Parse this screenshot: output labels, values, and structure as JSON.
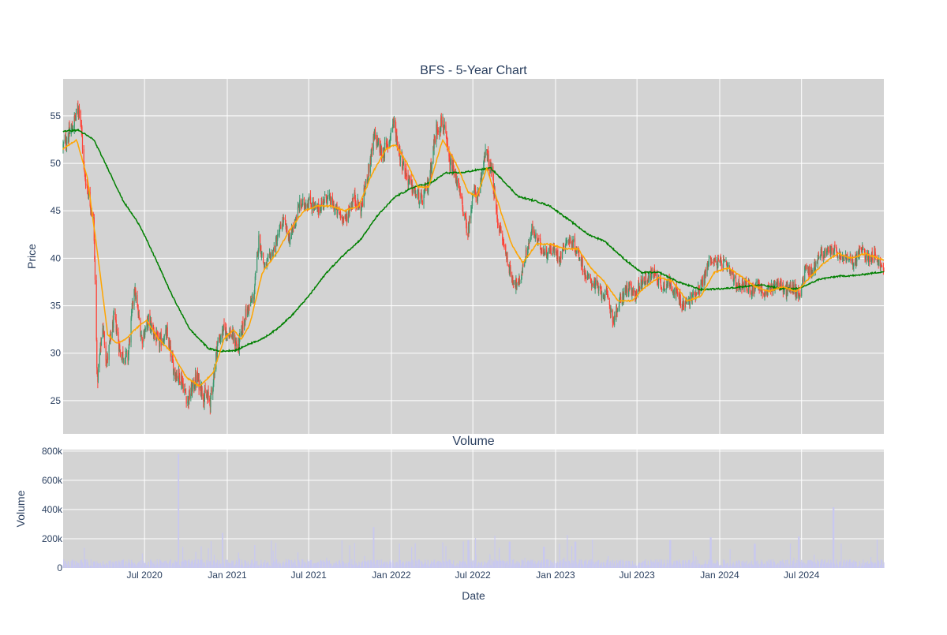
{
  "title": "BFS - 5-Year Chart",
  "colors": {
    "plot_bg": "#d3d3d3",
    "grid": "#ffffff",
    "up": "#3d9970",
    "down": "#ff4136",
    "ma_fast": "#ffa500",
    "ma_slow": "#008000",
    "volume": "#c8c8f0",
    "text": "#2a3f5f"
  },
  "chart_data": [
    {
      "type": "candlestick",
      "title": "BFS - 5-Year Chart",
      "ylabel": "Price",
      "ylim": [
        21.5,
        58.9
      ],
      "yticks": [
        25,
        30,
        35,
        40,
        45,
        50,
        55
      ],
      "ytick_labels": [
        "25",
        "30",
        "35",
        "40",
        "45",
        "50",
        "55"
      ],
      "x_range": [
        "2020-01-02",
        "2024-12-31"
      ],
      "xticks": [
        "2020-07-01",
        "2021-01-01",
        "2021-07-01",
        "2022-01-01",
        "2022-07-01",
        "2023-01-01",
        "2023-07-01",
        "2024-01-01",
        "2024-07-01"
      ],
      "grid": true,
      "price_anchors": [
        [
          "2020-01-02",
          51.8
        ],
        [
          "2020-01-20",
          53.5
        ],
        [
          "2020-02-08",
          56.2
        ],
        [
          "2020-02-18",
          49.0
        ],
        [
          "2020-03-10",
          44.0
        ],
        [
          "2020-03-18",
          27.0
        ],
        [
          "2020-03-30",
          33.0
        ],
        [
          "2020-04-08",
          29.0
        ],
        [
          "2020-04-25",
          34.0
        ],
        [
          "2020-05-08",
          30.0
        ],
        [
          "2020-05-25",
          29.5
        ],
        [
          "2020-06-08",
          37.0
        ],
        [
          "2020-06-25",
          31.5
        ],
        [
          "2020-07-10",
          33.5
        ],
        [
          "2020-08-01",
          31.0
        ],
        [
          "2020-08-20",
          32.0
        ],
        [
          "2020-09-05",
          28.0
        ],
        [
          "2020-09-20",
          27.5
        ],
        [
          "2020-10-05",
          25.0
        ],
        [
          "2020-10-25",
          27.5
        ],
        [
          "2020-11-10",
          25.5
        ],
        [
          "2020-11-25",
          25.0
        ],
        [
          "2020-12-10",
          31.0
        ],
        [
          "2020-12-25",
          32.5
        ],
        [
          "2021-01-10",
          32.0
        ],
        [
          "2021-01-25",
          30.5
        ],
        [
          "2021-02-10",
          34.0
        ],
        [
          "2021-03-01",
          36.0
        ],
        [
          "2021-03-12",
          42.0
        ],
        [
          "2021-03-25",
          39.0
        ],
        [
          "2021-04-15",
          41.0
        ],
        [
          "2021-05-05",
          44.0
        ],
        [
          "2021-05-20",
          42.0
        ],
        [
          "2021-06-10",
          45.5
        ],
        [
          "2021-07-01",
          46.0
        ],
        [
          "2021-07-20",
          45.0
        ],
        [
          "2021-08-10",
          46.5
        ],
        [
          "2021-09-01",
          45.0
        ],
        [
          "2021-09-20",
          44.0
        ],
        [
          "2021-10-10",
          46.5
        ],
        [
          "2021-10-25",
          45.0
        ],
        [
          "2021-11-10",
          49.0
        ],
        [
          "2021-11-25",
          53.0
        ],
        [
          "2021-12-10",
          51.0
        ],
        [
          "2021-12-25",
          52.0
        ],
        [
          "2022-01-05",
          54.5
        ],
        [
          "2022-01-20",
          51.0
        ],
        [
          "2022-02-05",
          48.5
        ],
        [
          "2022-02-20",
          47.0
        ],
        [
          "2022-03-10",
          46.0
        ],
        [
          "2022-03-25",
          48.0
        ],
        [
          "2022-04-10",
          53.5
        ],
        [
          "2022-04-25",
          54.5
        ],
        [
          "2022-05-10",
          50.0
        ],
        [
          "2022-05-25",
          48.5
        ],
        [
          "2022-06-10",
          45.0
        ],
        [
          "2022-06-20",
          42.5
        ],
        [
          "2022-07-01",
          47.0
        ],
        [
          "2022-07-15",
          46.5
        ],
        [
          "2022-07-28",
          51.5
        ],
        [
          "2022-08-12",
          49.0
        ],
        [
          "2022-08-25",
          44.0
        ],
        [
          "2022-09-10",
          41.0
        ],
        [
          "2022-09-25",
          38.0
        ],
        [
          "2022-10-10",
          37.0
        ],
        [
          "2022-10-25",
          40.0
        ],
        [
          "2022-11-10",
          43.0
        ],
        [
          "2022-11-25",
          41.5
        ],
        [
          "2022-12-10",
          40.5
        ],
        [
          "2022-12-25",
          41.0
        ],
        [
          "2023-01-10",
          40.0
        ],
        [
          "2023-01-25",
          42.0
        ],
        [
          "2023-02-10",
          41.5
        ],
        [
          "2023-02-25",
          40.0
        ],
        [
          "2023-03-10",
          38.0
        ],
        [
          "2023-03-25",
          37.5
        ],
        [
          "2023-04-10",
          36.5
        ],
        [
          "2023-04-25",
          36.0
        ],
        [
          "2023-05-10",
          33.5
        ],
        [
          "2023-05-25",
          35.5
        ],
        [
          "2023-06-10",
          37.0
        ],
        [
          "2023-06-25",
          36.0
        ],
        [
          "2023-07-10",
          37.5
        ],
        [
          "2023-07-25",
          38.0
        ],
        [
          "2023-08-10",
          38.5
        ],
        [
          "2023-08-25",
          37.0
        ],
        [
          "2023-09-10",
          37.5
        ],
        [
          "2023-09-25",
          36.5
        ],
        [
          "2023-10-10",
          35.0
        ],
        [
          "2023-10-25",
          35.5
        ],
        [
          "2023-11-10",
          36.5
        ],
        [
          "2023-11-25",
          37.5
        ],
        [
          "2023-12-10",
          40.0
        ],
        [
          "2023-12-25",
          39.5
        ],
        [
          "2024-01-10",
          39.5
        ],
        [
          "2024-01-25",
          38.5
        ],
        [
          "2024-02-10",
          37.0
        ],
        [
          "2024-02-25",
          37.5
        ],
        [
          "2024-03-10",
          36.5
        ],
        [
          "2024-03-25",
          37.5
        ],
        [
          "2024-04-10",
          36.0
        ],
        [
          "2024-04-25",
          37.0
        ],
        [
          "2024-05-10",
          37.5
        ],
        [
          "2024-05-25",
          36.5
        ],
        [
          "2024-06-10",
          37.0
        ],
        [
          "2024-06-25",
          36.0
        ],
        [
          "2024-07-10",
          39.0
        ],
        [
          "2024-07-25",
          38.5
        ],
        [
          "2024-08-10",
          40.5
        ],
        [
          "2024-08-25",
          40.5
        ],
        [
          "2024-09-10",
          41.0
        ],
        [
          "2024-09-25",
          40.0
        ],
        [
          "2024-10-10",
          40.0
        ],
        [
          "2024-10-25",
          39.5
        ],
        [
          "2024-11-10",
          41.0
        ],
        [
          "2024-11-25",
          40.0
        ],
        [
          "2024-12-10",
          40.5
        ],
        [
          "2024-12-31",
          38.5
        ]
      ],
      "ma_fast_anchors": [
        [
          "2020-01-02",
          51.5
        ],
        [
          "2020-02-01",
          52.5
        ],
        [
          "2020-02-25",
          48.5
        ],
        [
          "2020-03-20",
          40.0
        ],
        [
          "2020-04-10",
          32.0
        ],
        [
          "2020-05-01",
          31.0
        ],
        [
          "2020-05-20",
          31.5
        ],
        [
          "2020-06-10",
          32.5
        ],
        [
          "2020-07-05",
          33.5
        ],
        [
          "2020-08-01",
          31.5
        ],
        [
          "2020-09-01",
          30.0
        ],
        [
          "2020-10-01",
          27.5
        ],
        [
          "2020-11-01",
          26.5
        ],
        [
          "2020-12-01",
          28.0
        ],
        [
          "2020-12-25",
          31.5
        ],
        [
          "2021-01-15",
          32.5
        ],
        [
          "2021-02-01",
          31.5
        ],
        [
          "2021-02-20",
          33.0
        ],
        [
          "2021-03-20",
          38.5
        ],
        [
          "2021-04-20",
          40.5
        ],
        [
          "2021-05-20",
          43.0
        ],
        [
          "2021-06-20",
          45.0
        ],
        [
          "2021-07-20",
          45.5
        ],
        [
          "2021-08-20",
          45.5
        ],
        [
          "2021-09-20",
          45.0
        ],
        [
          "2021-10-20",
          45.5
        ],
        [
          "2021-11-20",
          49.0
        ],
        [
          "2021-12-20",
          51.5
        ],
        [
          "2022-01-10",
          52.0
        ],
        [
          "2022-02-05",
          50.0
        ],
        [
          "2022-03-01",
          47.5
        ],
        [
          "2022-03-25",
          47.5
        ],
        [
          "2022-04-25",
          52.5
        ],
        [
          "2022-05-25",
          50.0
        ],
        [
          "2022-06-20",
          47.0
        ],
        [
          "2022-07-10",
          46.5
        ],
        [
          "2022-08-01",
          49.5
        ],
        [
          "2022-08-25",
          46.0
        ],
        [
          "2022-09-25",
          41.5
        ],
        [
          "2022-10-20",
          39.5
        ],
        [
          "2022-11-20",
          41.5
        ],
        [
          "2022-12-20",
          41.5
        ],
        [
          "2023-01-20",
          41.0
        ],
        [
          "2023-02-20",
          41.0
        ],
        [
          "2023-03-20",
          39.0
        ],
        [
          "2023-04-20",
          37.5
        ],
        [
          "2023-05-20",
          35.5
        ],
        [
          "2023-06-20",
          35.5
        ],
        [
          "2023-07-20",
          37.0
        ],
        [
          "2023-08-20",
          38.0
        ],
        [
          "2023-09-20",
          37.5
        ],
        [
          "2023-10-20",
          35.5
        ],
        [
          "2023-11-20",
          36.0
        ],
        [
          "2023-12-20",
          38.5
        ],
        [
          "2024-01-20",
          39.0
        ],
        [
          "2024-02-20",
          38.0
        ],
        [
          "2024-03-20",
          37.0
        ],
        [
          "2024-04-20",
          36.5
        ],
        [
          "2024-05-20",
          37.0
        ],
        [
          "2024-06-20",
          36.5
        ],
        [
          "2024-07-20",
          38.0
        ],
        [
          "2024-08-20",
          39.5
        ],
        [
          "2024-09-20",
          40.5
        ],
        [
          "2024-10-20",
          40.0
        ],
        [
          "2024-11-20",
          40.5
        ],
        [
          "2024-12-31",
          39.8
        ]
      ],
      "ma_slow_anchors": [
        [
          "2020-01-02",
          53.4
        ],
        [
          "2020-02-05",
          53.5
        ],
        [
          "2020-03-10",
          52.5
        ],
        [
          "2020-04-10",
          49.5
        ],
        [
          "2020-05-15",
          46.0
        ],
        [
          "2020-06-20",
          43.5
        ],
        [
          "2020-07-25",
          40.0
        ],
        [
          "2020-09-01",
          36.0
        ],
        [
          "2020-10-10",
          32.5
        ],
        [
          "2020-11-20",
          30.5
        ],
        [
          "2020-12-15",
          30.2
        ],
        [
          "2021-01-20",
          30.3
        ],
        [
          "2021-02-20",
          31.0
        ],
        [
          "2021-03-20",
          31.5
        ],
        [
          "2021-04-20",
          32.5
        ],
        [
          "2021-05-25",
          34.0
        ],
        [
          "2021-07-01",
          36.0
        ],
        [
          "2021-08-10",
          38.5
        ],
        [
          "2021-09-20",
          40.5
        ],
        [
          "2021-10-25",
          42.0
        ],
        [
          "2021-12-01",
          44.5
        ],
        [
          "2022-01-10",
          46.5
        ],
        [
          "2022-02-20",
          47.5
        ],
        [
          "2022-04-01",
          48.0
        ],
        [
          "2022-05-01",
          49.0
        ],
        [
          "2022-06-05",
          49.0
        ],
        [
          "2022-07-10",
          49.3
        ],
        [
          "2022-08-10",
          49.5
        ],
        [
          "2022-09-10",
          48.0
        ],
        [
          "2022-10-10",
          46.5
        ],
        [
          "2022-11-20",
          46.0
        ],
        [
          "2022-12-20",
          45.5
        ],
        [
          "2023-02-01",
          44.0
        ],
        [
          "2023-03-15",
          42.5
        ],
        [
          "2023-04-20",
          41.8
        ],
        [
          "2023-06-01",
          40.0
        ],
        [
          "2023-07-10",
          38.5
        ],
        [
          "2023-08-20",
          38.5
        ],
        [
          "2023-10-01",
          37.5
        ],
        [
          "2023-11-20",
          36.7
        ],
        [
          "2024-01-10",
          36.8
        ],
        [
          "2024-02-20",
          37.0
        ],
        [
          "2024-04-01",
          37.2
        ],
        [
          "2024-05-15",
          36.8
        ],
        [
          "2024-06-25",
          36.8
        ],
        [
          "2024-08-10",
          37.8
        ],
        [
          "2024-09-20",
          38.1
        ],
        [
          "2024-11-01",
          38.2
        ],
        [
          "2024-12-31",
          38.6
        ]
      ]
    },
    {
      "type": "bar",
      "title": "Volume",
      "xlabel": "Date",
      "ylabel": "Volume",
      "ylim": [
        0,
        810000
      ],
      "yticks": [
        0,
        200000,
        400000,
        600000,
        800000
      ],
      "ytick_labels": [
        "0",
        "200k",
        "400k",
        "600k",
        "800k"
      ],
      "xtick_labels": [
        "Jul 2020",
        "Jan 2021",
        "Jul 2021",
        "Jan 2022",
        "Jul 2022",
        "Jan 2023",
        "Jul 2023",
        "Jan 2024",
        "Jul 2024"
      ],
      "baseline": 35000,
      "spikes": [
        [
          "2020-09-14",
          780000
        ],
        [
          "2020-12-21",
          240000
        ],
        [
          "2021-11-22",
          280000
        ],
        [
          "2022-06-21",
          190000
        ],
        [
          "2022-09-21",
          180000
        ],
        [
          "2022-12-06",
          145000
        ],
        [
          "2023-02-14",
          180000
        ],
        [
          "2023-09-13",
          190000
        ],
        [
          "2023-12-12",
          210000
        ],
        [
          "2024-03-19",
          165000
        ],
        [
          "2024-06-25",
          215000
        ],
        [
          "2024-09-10",
          415000
        ]
      ]
    }
  ]
}
